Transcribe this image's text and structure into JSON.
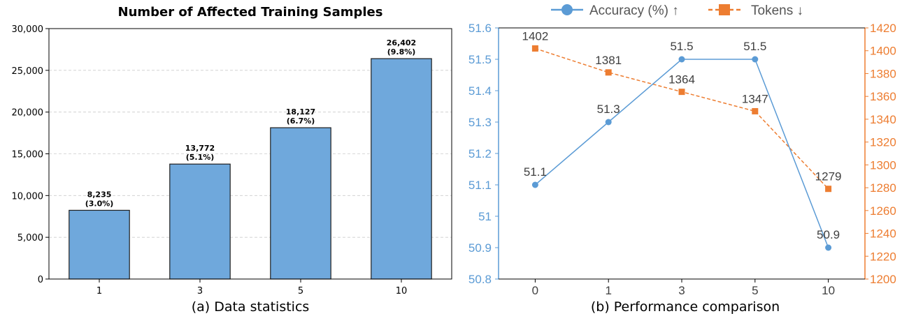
{
  "chart_data": [
    {
      "type": "bar",
      "title": "Number of Affected Training Samples",
      "caption": "(a) Data statistics",
      "categories": [
        "1",
        "3",
        "5",
        "10"
      ],
      "values": [
        8235,
        13772,
        18127,
        26402
      ],
      "data_labels": [
        "8,235\n(3.0%)",
        "13,772\n(5.1%)",
        "18,127\n(6.7%)",
        "26,402\n(9.8%)"
      ],
      "yticks": [
        "0",
        "5,000",
        "10,000",
        "15,000",
        "20,000",
        "25,000",
        "30,000"
      ],
      "ylim": [
        0,
        30000
      ],
      "grid": "horizontal dashed",
      "colors": {
        "bar": "#6fa8dc",
        "edge": "#1f1f1f"
      }
    },
    {
      "type": "line",
      "caption": "(b) Performance comparison",
      "categories": [
        "0",
        "1",
        "3",
        "5",
        "10"
      ],
      "series": [
        {
          "name": "Accuracy (%) ↑",
          "axis": "left",
          "values": [
            51.1,
            51.3,
            51.5,
            51.5,
            50.9
          ],
          "labels": [
            "51.1",
            "51.3",
            "51.5",
            "51.5",
            "50.9"
          ],
          "color": "#5b9bd5",
          "marker": "circle",
          "style": "solid"
        },
        {
          "name": "Tokens ↓",
          "axis": "right",
          "values": [
            1402,
            1381,
            1364,
            1347,
            1279
          ],
          "labels": [
            "1402",
            "1381",
            "1364",
            "1347",
            "1279"
          ],
          "color": "#ed7d31",
          "marker": "square",
          "style": "dashed"
        }
      ],
      "left_yticks": [
        "50.8",
        "50.9",
        "51",
        "51.1",
        "51.2",
        "51.3",
        "51.4",
        "51.5",
        "51.6"
      ],
      "left_ylim": [
        50.8,
        51.6
      ],
      "right_yticks": [
        "1200",
        "1220",
        "1240",
        "1260",
        "1280",
        "1300",
        "1320",
        "1340",
        "1360",
        "1380",
        "1400",
        "1420"
      ],
      "right_ylim": [
        1200,
        1420
      ],
      "legend_position": "top"
    }
  ]
}
